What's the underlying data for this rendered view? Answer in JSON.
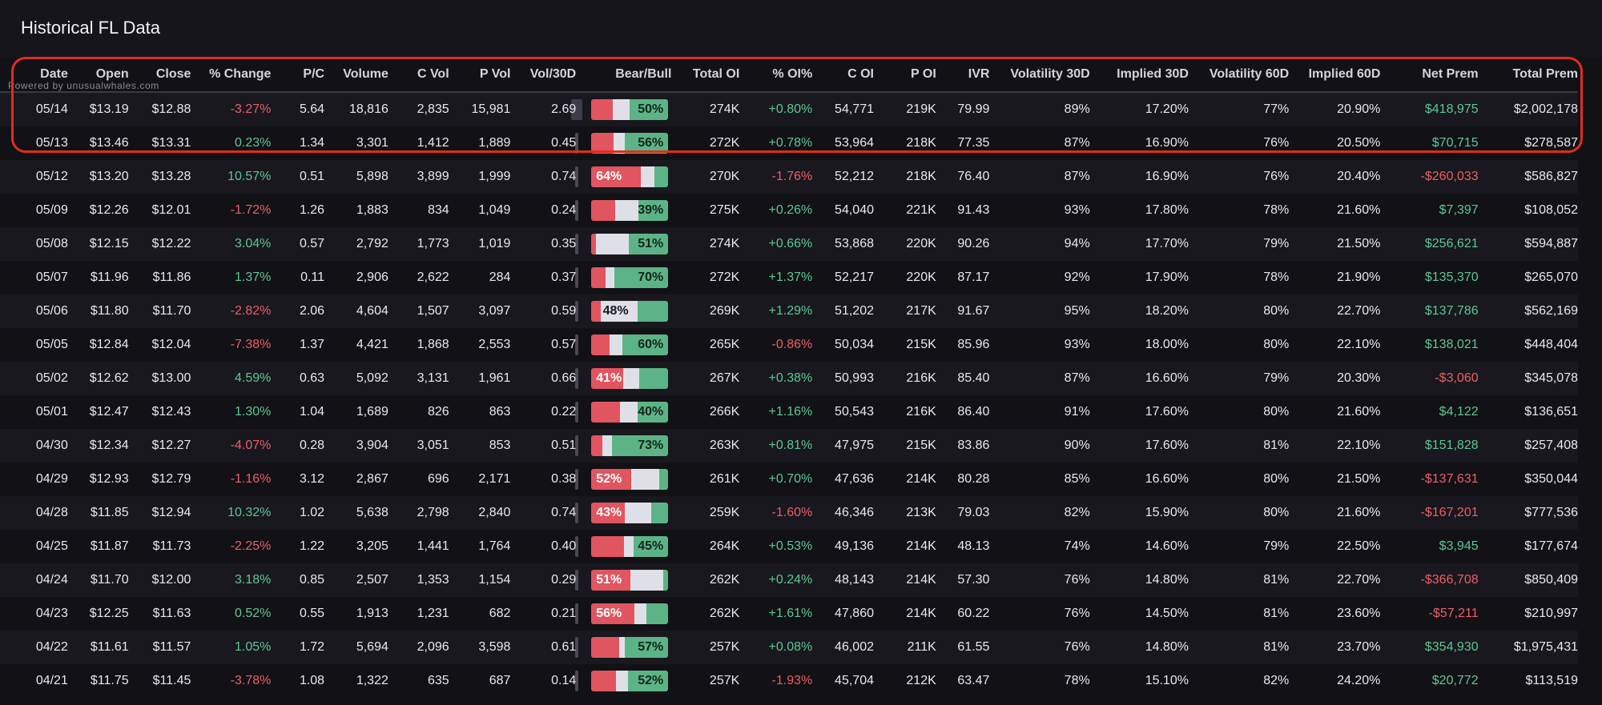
{
  "title": "Historical FL Data",
  "powered_by": "Powered by unusualwhales.com",
  "colors": {
    "positive": "#5fc792",
    "negative": "#ec5f68",
    "bear": "#e05560",
    "bull": "#5cb486",
    "neutral": "#dfe0e7",
    "highlight": "#e02d1c"
  },
  "columns": [
    "Date",
    "Open",
    "Close",
    "% Change",
    "P/C",
    "Volume",
    "C Vol",
    "P Vol",
    "Vol/30D",
    "Bear/Bull",
    "Total OI",
    "% OI%",
    "C OI",
    "P OI",
    "IVR",
    "Volatility 30D",
    "Implied 30D",
    "Volatility 60D",
    "Implied 60D",
    "Net Prem",
    "Total Prem"
  ],
  "rows": [
    {
      "date": "05/14",
      "open": "$13.19",
      "close": "$12.88",
      "pct_change": "-3.27%",
      "pc": "5.64",
      "volume": "18,816",
      "c_vol": "2,835",
      "p_vol": "15,981",
      "vol_30d": "2.69",
      "bear_pct": 0.28,
      "bull_pct": 0.5,
      "bb_label": "50%",
      "bb_side": "bull",
      "total_oi": "274K",
      "oi_pct": "+0.80%",
      "c_oi": "54,771",
      "p_oi": "219K",
      "ivr": "79.99",
      "vol30": "89%",
      "imp30": "17.20%",
      "vol60": "77%",
      "imp60": "20.90%",
      "net_prem": "$418,975",
      "total_prem": "$2,002,178"
    },
    {
      "date": "05/13",
      "open": "$13.46",
      "close": "$13.31",
      "pct_change": "0.23%",
      "pc": "1.34",
      "volume": "3,301",
      "c_vol": "1,412",
      "p_vol": "1,889",
      "vol_30d": "0.45",
      "bear_pct": 0.29,
      "bull_pct": 0.56,
      "bb_label": "56%",
      "bb_side": "bull",
      "total_oi": "272K",
      "oi_pct": "+0.78%",
      "c_oi": "53,964",
      "p_oi": "218K",
      "ivr": "77.35",
      "vol30": "87%",
      "imp30": "16.90%",
      "vol60": "76%",
      "imp60": "20.50%",
      "net_prem": "$70,715",
      "total_prem": "$278,587"
    },
    {
      "date": "05/12",
      "open": "$13.20",
      "close": "$13.28",
      "pct_change": "10.57%",
      "pc": "0.51",
      "volume": "5,898",
      "c_vol": "3,899",
      "p_vol": "1,999",
      "vol_30d": "0.74",
      "bear_pct": 0.64,
      "bull_pct": 0.18,
      "bb_label": "64%",
      "bb_side": "bear",
      "total_oi": "270K",
      "oi_pct": "-1.76%",
      "c_oi": "52,212",
      "p_oi": "218K",
      "ivr": "76.40",
      "vol30": "87%",
      "imp30": "16.90%",
      "vol60": "76%",
      "imp60": "20.40%",
      "net_prem": "-$260,033",
      "total_prem": "$586,827"
    },
    {
      "date": "05/09",
      "open": "$12.26",
      "close": "$12.01",
      "pct_change": "-1.72%",
      "pc": "1.26",
      "volume": "1,883",
      "c_vol": "834",
      "p_vol": "1,049",
      "vol_30d": "0.24",
      "bear_pct": 0.31,
      "bull_pct": 0.39,
      "bb_label": "39%",
      "bb_side": "bull",
      "total_oi": "275K",
      "oi_pct": "+0.26%",
      "c_oi": "54,040",
      "p_oi": "221K",
      "ivr": "91.43",
      "vol30": "93%",
      "imp30": "17.80%",
      "vol60": "78%",
      "imp60": "21.60%",
      "net_prem": "$7,397",
      "total_prem": "$108,052"
    },
    {
      "date": "05/08",
      "open": "$12.15",
      "close": "$12.22",
      "pct_change": "3.04%",
      "pc": "0.57",
      "volume": "2,792",
      "c_vol": "1,773",
      "p_vol": "1,019",
      "vol_30d": "0.35",
      "bear_pct": 0.06,
      "bull_pct": 0.51,
      "bb_label": "51%",
      "bb_side": "bull",
      "total_oi": "274K",
      "oi_pct": "+0.66%",
      "c_oi": "53,868",
      "p_oi": "220K",
      "ivr": "90.26",
      "vol30": "94%",
      "imp30": "17.70%",
      "vol60": "79%",
      "imp60": "21.50%",
      "net_prem": "$256,621",
      "total_prem": "$594,887"
    },
    {
      "date": "05/07",
      "open": "$11.96",
      "close": "$11.86",
      "pct_change": "1.37%",
      "pc": "0.11",
      "volume": "2,906",
      "c_vol": "2,622",
      "p_vol": "284",
      "vol_30d": "0.37",
      "bear_pct": 0.18,
      "bull_pct": 0.7,
      "bb_label": "70%",
      "bb_side": "bull",
      "total_oi": "272K",
      "oi_pct": "+1.37%",
      "c_oi": "52,217",
      "p_oi": "220K",
      "ivr": "87.17",
      "vol30": "92%",
      "imp30": "17.90%",
      "vol60": "78%",
      "imp60": "21.90%",
      "net_prem": "$135,370",
      "total_prem": "$265,070"
    },
    {
      "date": "05/06",
      "open": "$11.80",
      "close": "$11.70",
      "pct_change": "-2.82%",
      "pc": "2.06",
      "volume": "4,604",
      "c_vol": "1,507",
      "p_vol": "3,097",
      "vol_30d": "0.59",
      "bear_pct": 0.12,
      "bull_pct": 0.4,
      "bb_label": "48%",
      "bb_side": "neutral",
      "total_oi": "269K",
      "oi_pct": "+1.29%",
      "c_oi": "51,202",
      "p_oi": "217K",
      "ivr": "91.67",
      "vol30": "95%",
      "imp30": "18.20%",
      "vol60": "80%",
      "imp60": "22.70%",
      "net_prem": "$137,786",
      "total_prem": "$562,169"
    },
    {
      "date": "05/05",
      "open": "$12.84",
      "close": "$12.04",
      "pct_change": "-7.38%",
      "pc": "1.37",
      "volume": "4,421",
      "c_vol": "1,868",
      "p_vol": "2,553",
      "vol_30d": "0.57",
      "bear_pct": 0.24,
      "bull_pct": 0.6,
      "bb_label": "60%",
      "bb_side": "bull",
      "total_oi": "265K",
      "oi_pct": "-0.86%",
      "c_oi": "50,034",
      "p_oi": "215K",
      "ivr": "85.96",
      "vol30": "93%",
      "imp30": "18.00%",
      "vol60": "80%",
      "imp60": "22.10%",
      "net_prem": "$138,021",
      "total_prem": "$448,404"
    },
    {
      "date": "05/02",
      "open": "$12.62",
      "close": "$13.00",
      "pct_change": "4.59%",
      "pc": "0.63",
      "volume": "5,092",
      "c_vol": "3,131",
      "p_vol": "1,961",
      "vol_30d": "0.66",
      "bear_pct": 0.41,
      "bull_pct": 0.38,
      "bb_label": "41%",
      "bb_side": "bear",
      "total_oi": "267K",
      "oi_pct": "+0.38%",
      "c_oi": "50,993",
      "p_oi": "216K",
      "ivr": "85.40",
      "vol30": "87%",
      "imp30": "16.60%",
      "vol60": "79%",
      "imp60": "20.30%",
      "net_prem": "-$3,060",
      "total_prem": "$345,078"
    },
    {
      "date": "05/01",
      "open": "$12.47",
      "close": "$12.43",
      "pct_change": "1.30%",
      "pc": "1.04",
      "volume": "1,689",
      "c_vol": "826",
      "p_vol": "863",
      "vol_30d": "0.22",
      "bear_pct": 0.37,
      "bull_pct": 0.4,
      "bb_label": "40%",
      "bb_side": "bull",
      "total_oi": "266K",
      "oi_pct": "+1.16%",
      "c_oi": "50,543",
      "p_oi": "216K",
      "ivr": "86.40",
      "vol30": "91%",
      "imp30": "17.60%",
      "vol60": "80%",
      "imp60": "21.60%",
      "net_prem": "$4,122",
      "total_prem": "$136,651"
    },
    {
      "date": "04/30",
      "open": "$12.34",
      "close": "$12.27",
      "pct_change": "-4.07%",
      "pc": "0.28",
      "volume": "3,904",
      "c_vol": "3,051",
      "p_vol": "853",
      "vol_30d": "0.51",
      "bear_pct": 0.14,
      "bull_pct": 0.73,
      "bb_label": "73%",
      "bb_side": "bull",
      "total_oi": "263K",
      "oi_pct": "+0.81%",
      "c_oi": "47,975",
      "p_oi": "215K",
      "ivr": "83.86",
      "vol30": "90%",
      "imp30": "17.60%",
      "vol60": "81%",
      "imp60": "22.10%",
      "net_prem": "$151,828",
      "total_prem": "$257,408"
    },
    {
      "date": "04/29",
      "open": "$12.93",
      "close": "$12.79",
      "pct_change": "-1.16%",
      "pc": "3.12",
      "volume": "2,867",
      "c_vol": "696",
      "p_vol": "2,171",
      "vol_30d": "0.38",
      "bear_pct": 0.52,
      "bull_pct": 0.12,
      "bb_label": "52%",
      "bb_side": "bear",
      "total_oi": "261K",
      "oi_pct": "+0.70%",
      "c_oi": "47,636",
      "p_oi": "214K",
      "ivr": "80.28",
      "vol30": "85%",
      "imp30": "16.60%",
      "vol60": "80%",
      "imp60": "21.50%",
      "net_prem": "-$137,631",
      "total_prem": "$350,044"
    },
    {
      "date": "04/28",
      "open": "$11.85",
      "close": "$12.94",
      "pct_change": "10.32%",
      "pc": "1.02",
      "volume": "5,638",
      "c_vol": "2,798",
      "p_vol": "2,840",
      "vol_30d": "0.74",
      "bear_pct": 0.43,
      "bull_pct": 0.22,
      "bb_label": "43%",
      "bb_side": "bear",
      "total_oi": "259K",
      "oi_pct": "-1.60%",
      "c_oi": "46,346",
      "p_oi": "213K",
      "ivr": "79.03",
      "vol30": "82%",
      "imp30": "15.90%",
      "vol60": "80%",
      "imp60": "21.60%",
      "net_prem": "-$167,201",
      "total_prem": "$777,536"
    },
    {
      "date": "04/25",
      "open": "$11.87",
      "close": "$11.73",
      "pct_change": "-2.25%",
      "pc": "1.22",
      "volume": "3,205",
      "c_vol": "1,441",
      "p_vol": "1,764",
      "vol_30d": "0.40",
      "bear_pct": 0.42,
      "bull_pct": 0.45,
      "bb_label": "45%",
      "bb_side": "bull",
      "total_oi": "264K",
      "oi_pct": "+0.53%",
      "c_oi": "49,136",
      "p_oi": "214K",
      "ivr": "48.13",
      "vol30": "74%",
      "imp30": "14.60%",
      "vol60": "79%",
      "imp60": "22.50%",
      "net_prem": "$3,945",
      "total_prem": "$177,674"
    },
    {
      "date": "04/24",
      "open": "$11.70",
      "close": "$12.00",
      "pct_change": "3.18%",
      "pc": "0.85",
      "volume": "2,507",
      "c_vol": "1,353",
      "p_vol": "1,154",
      "vol_30d": "0.29",
      "bear_pct": 0.51,
      "bull_pct": 0.06,
      "bb_label": "51%",
      "bb_side": "bear",
      "total_oi": "262K",
      "oi_pct": "+0.24%",
      "c_oi": "48,143",
      "p_oi": "214K",
      "ivr": "57.30",
      "vol30": "76%",
      "imp30": "14.80%",
      "vol60": "81%",
      "imp60": "22.70%",
      "net_prem": "-$366,708",
      "total_prem": "$850,409"
    },
    {
      "date": "04/23",
      "open": "$12.25",
      "close": "$11.63",
      "pct_change": "0.52%",
      "pc": "0.55",
      "volume": "1,913",
      "c_vol": "1,231",
      "p_vol": "682",
      "vol_30d": "0.21",
      "bear_pct": 0.56,
      "bull_pct": 0.28,
      "bb_label": "56%",
      "bb_side": "bear",
      "total_oi": "262K",
      "oi_pct": "+1.61%",
      "c_oi": "47,860",
      "p_oi": "214K",
      "ivr": "60.22",
      "vol30": "76%",
      "imp30": "14.50%",
      "vol60": "81%",
      "imp60": "23.60%",
      "net_prem": "-$57,211",
      "total_prem": "$210,997"
    },
    {
      "date": "04/22",
      "open": "$11.61",
      "close": "$11.57",
      "pct_change": "1.05%",
      "pc": "1.72",
      "volume": "5,694",
      "c_vol": "2,096",
      "p_vol": "3,598",
      "vol_30d": "0.61",
      "bear_pct": 0.36,
      "bull_pct": 0.57,
      "bb_label": "57%",
      "bb_side": "bull",
      "total_oi": "257K",
      "oi_pct": "+0.08%",
      "c_oi": "46,002",
      "p_oi": "211K",
      "ivr": "61.55",
      "vol30": "76%",
      "imp30": "14.80%",
      "vol60": "81%",
      "imp60": "23.70%",
      "net_prem": "$354,930",
      "total_prem": "$1,975,431"
    },
    {
      "date": "04/21",
      "open": "$11.75",
      "close": "$11.45",
      "pct_change": "-3.78%",
      "pc": "1.08",
      "volume": "1,322",
      "c_vol": "635",
      "p_vol": "687",
      "vol_30d": "0.14",
      "bear_pct": 0.32,
      "bull_pct": 0.52,
      "bb_label": "52%",
      "bb_side": "bull",
      "total_oi": "257K",
      "oi_pct": "-1.93%",
      "c_oi": "45,704",
      "p_oi": "212K",
      "ivr": "63.47",
      "vol30": "78%",
      "imp30": "15.10%",
      "vol60": "82%",
      "imp60": "24.20%",
      "net_prem": "$20,772",
      "total_prem": "$113,519"
    }
  ]
}
